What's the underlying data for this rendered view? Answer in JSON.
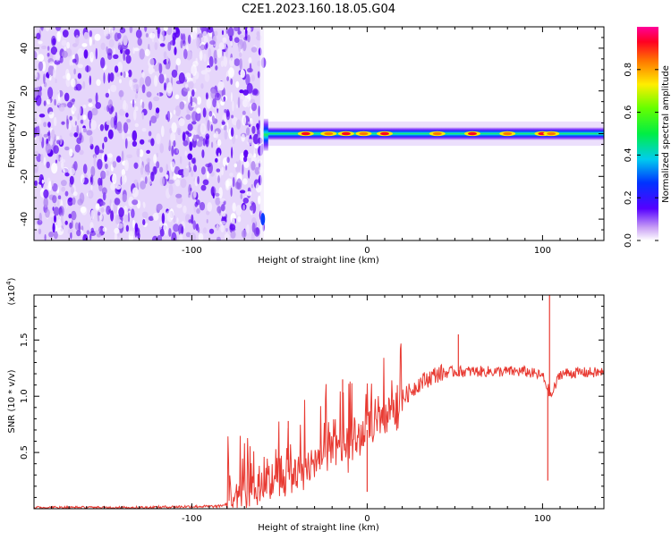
{
  "title": "C2E1.2023.160.18.05.G04",
  "chart_data": [
    {
      "type": "heatmap",
      "title": "C2E1.2023.160.18.05.G04",
      "xlabel": "Height of straight line (km)",
      "ylabel": "Frequency (Hz)",
      "xlim": [
        -190,
        135
      ],
      "ylim": [
        -50,
        50
      ],
      "x_ticks": [
        -100,
        0,
        100
      ],
      "x_tick_labels": [
        "-100",
        "0",
        "100"
      ],
      "y_ticks": [
        -40,
        -20,
        0,
        20,
        40
      ],
      "y_tick_labels": [
        "-40",
        "-20",
        "0",
        "20",
        "40"
      ],
      "grid": false,
      "colorbar": {
        "label": "Normalized spectral amplitude",
        "range": [
          0,
          1
        ],
        "ticks": [
          0.0,
          0.2,
          0.4,
          0.6,
          0.8
        ],
        "tick_labels": [
          "0.0",
          "0.2",
          "0.4",
          "0.6",
          "0.8"
        ],
        "colormap": "rainbow (white-violet-blue-cyan-green-yellow-orange-red-magenta)"
      },
      "noise_region_x": [
        -190,
        -59
      ],
      "signal_band": {
        "x_start": -59,
        "x_end": 135,
        "center_frequency_hz": 0,
        "half_width_hz": 3,
        "peaks_x": [
          -35,
          -22,
          -12,
          -2,
          10,
          40,
          60,
          80,
          100,
          105
        ]
      }
    },
    {
      "type": "line",
      "xlabel": "Height of straight line (km)",
      "ylabel": "SNR (10 * v/v)",
      "y_multiplier": "(x10^4)",
      "y_multiplier_base": "(x10",
      "y_multiplier_exp": "4",
      "y_multiplier_close": ")",
      "xlim": [
        -190,
        135
      ],
      "ylim": [
        0,
        1.9
      ],
      "x_ticks": [
        -100,
        0,
        100
      ],
      "x_tick_labels": [
        "-100",
        "0",
        "100"
      ],
      "y_ticks": [
        0.5,
        1.0,
        1.5
      ],
      "y_tick_labels": [
        "0.5",
        "1.0",
        "1.5"
      ],
      "grid": false,
      "series": [
        {
          "color": "#e83a32",
          "x": [
            -190,
            -160,
            -130,
            -100,
            -85,
            -78,
            -70,
            -60,
            -50,
            -40,
            -30,
            -20,
            -10,
            0,
            10,
            20,
            30,
            40,
            50,
            60,
            70,
            80,
            90,
            100,
            105,
            110,
            120,
            135
          ],
          "y": [
            0.01,
            0.01,
            0.01,
            0.02,
            0.02,
            0.05,
            0.15,
            0.22,
            0.3,
            0.35,
            0.42,
            0.55,
            0.6,
            0.7,
            0.82,
            0.98,
            1.12,
            1.2,
            1.22,
            1.22,
            1.22,
            1.22,
            1.22,
            1.18,
            1.0,
            1.2,
            1.21,
            1.21
          ]
        }
      ],
      "spikes": [
        {
          "x": 104,
          "y": 1.9
        },
        {
          "x": 103,
          "y": 0.25
        },
        {
          "x": 52,
          "y": 1.55
        },
        {
          "x": -14,
          "y": 1.15
        },
        {
          "x": 0,
          "y": 0.15
        },
        {
          "x": -45,
          "y": 0.78
        }
      ]
    }
  ]
}
